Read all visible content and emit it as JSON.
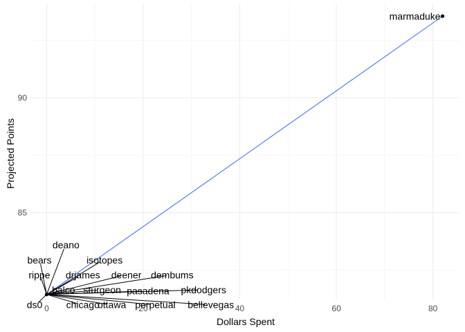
{
  "chart_data": {
    "type": "scatter",
    "xlabel": "Dollars Spent",
    "ylabel": "Projected Points",
    "xlim": [
      -3.5,
      85.5
    ],
    "ylim": [
      81.2,
      94.1
    ],
    "x_ticks": [
      0,
      20,
      40,
      60,
      80
    ],
    "y_ticks": [
      85,
      90
    ],
    "x_tick_labels": [
      "0",
      "20",
      "40",
      "60",
      "80"
    ],
    "y_tick_labels": [
      "85",
      "90"
    ],
    "grid": true,
    "fit_line": {
      "x": [
        0,
        82
      ],
      "y": [
        81.45,
        93.55
      ],
      "color": "#3366ff"
    },
    "points": [
      {
        "label": "marmaduke",
        "x": 82,
        "y": 93.55,
        "label_x": 72,
        "label_y": 93.5
      },
      {
        "label": "deano",
        "x": 0,
        "y": 81.45,
        "label_x": 4,
        "label_y": 83.6
      },
      {
        "label": "bears",
        "x": 0,
        "y": 81.45,
        "label_x": -1.5,
        "label_y": 82.95
      },
      {
        "label": "isotopes",
        "x": 0,
        "y": 81.45,
        "label_x": 12,
        "label_y": 82.95
      },
      {
        "label": "rippe",
        "x": 0,
        "y": 81.45,
        "label_x": -1.5,
        "label_y": 82.3
      },
      {
        "label": "drjames",
        "x": 0,
        "y": 81.45,
        "label_x": 7.5,
        "label_y": 82.3
      },
      {
        "label": "deener",
        "x": 0,
        "y": 81.45,
        "label_x": 16.5,
        "label_y": 82.3
      },
      {
        "label": "dembums",
        "x": 0,
        "y": 81.45,
        "label_x": 26,
        "label_y": 82.3
      },
      {
        "label": "balco",
        "x": 0,
        "y": 81.45,
        "label_x": 3.5,
        "label_y": 81.65
      },
      {
        "label": "sturgeon",
        "x": 0,
        "y": 81.45,
        "label_x": 11.5,
        "label_y": 81.65
      },
      {
        "label": "pasadena",
        "x": 0,
        "y": 81.45,
        "label_x": 21,
        "label_y": 81.6
      },
      {
        "label": "pkdodgers",
        "x": 0,
        "y": 81.45,
        "label_x": 32.5,
        "label_y": 81.65
      },
      {
        "label": "ds0",
        "x": 0,
        "y": 81.45,
        "label_x": -2.5,
        "label_y": 81.0
      },
      {
        "label": "chicago",
        "x": 0,
        "y": 81.45,
        "label_x": 7.5,
        "label_y": 81.0
      },
      {
        "label": "ottawa",
        "x": 0,
        "y": 81.45,
        "label_x": 13.5,
        "label_y": 81.0
      },
      {
        "label": "perpetual",
        "x": 0,
        "y": 81.45,
        "label_x": 22.5,
        "label_y": 81.0
      },
      {
        "label": "bellevegas",
        "x": 0,
        "y": 81.45,
        "label_x": 34,
        "label_y": 81.0
      }
    ]
  }
}
